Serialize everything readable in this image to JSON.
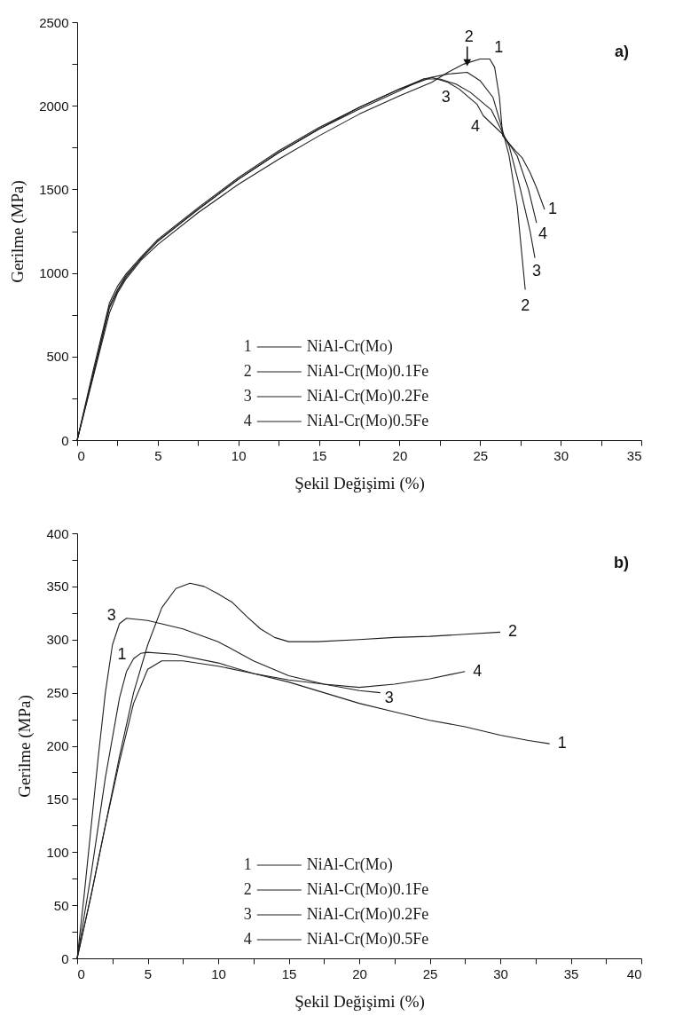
{
  "chart_data": [
    {
      "type": "line",
      "xlabel": "Şekil Değişimi (%)",
      "ylabel": "Gerilme (MPa)",
      "xlim": [
        0,
        35
      ],
      "ylim": [
        0,
        2500
      ],
      "xticks": [
        0,
        {
          "value": 2.5,
          "label": null
        },
        5,
        {
          "value": 7.5,
          "label": null
        },
        10,
        {
          "value": 12.5,
          "label": null
        },
        15,
        {
          "value": 17.5,
          "label": null
        },
        20,
        {
          "value": 22.5,
          "label": null
        },
        25,
        {
          "value": 27.5,
          "label": null
        },
        30,
        {
          "value": 32.5,
          "label": null
        },
        35
      ],
      "yticks": [
        0,
        {
          "value": 250,
          "label": null
        },
        500,
        {
          "value": 750,
          "label": null
        },
        1000,
        {
          "value": 1250,
          "label": null
        },
        1500,
        {
          "value": 1750,
          "label": null
        },
        2000,
        {
          "value": 2250,
          "label": null
        },
        2500
      ],
      "grid": false,
      "legend": "bottom",
      "marker": "none",
      "line_style": "solid",
      "series": [
        {
          "name": "NiAl-Cr(Mo)",
          "color": "#1e1e1e",
          "x": [
            0,
            1,
            2,
            2.5,
            3,
            4,
            5,
            7.5,
            10,
            12.5,
            15,
            17.5,
            20,
            22,
            23,
            24,
            25,
            25.6,
            25.9,
            26.2,
            26.4,
            27.2,
            27.6,
            28.1,
            28.5,
            29
          ],
          "values": [
            0,
            380,
            760,
            880,
            960,
            1080,
            1170,
            1360,
            1530,
            1680,
            1820,
            1950,
            2060,
            2140,
            2200,
            2250,
            2280,
            2280,
            2230,
            2050,
            1820,
            1730,
            1690,
            1600,
            1510,
            1380
          ]
        },
        {
          "name": "NiAl-Cr(Mo)0.1Fe",
          "color": "#1e1e1e",
          "x": [
            0,
            1,
            2,
            2.5,
            3,
            4,
            5,
            7.5,
            10,
            12.5,
            15,
            17.5,
            20,
            21.5,
            23,
            24.2,
            25,
            25.8,
            26.4,
            26.8,
            27.3,
            27.8
          ],
          "values": [
            0,
            420,
            820,
            920,
            990,
            1100,
            1200,
            1390,
            1570,
            1730,
            1870,
            1990,
            2100,
            2160,
            2190,
            2200,
            2150,
            2050,
            1850,
            1700,
            1400,
            900
          ]
        },
        {
          "name": "NiAl-Cr(Mo)0.2Fe",
          "color": "#1e1e1e",
          "x": [
            0,
            1,
            2,
            2.5,
            3,
            4,
            5,
            7.5,
            10,
            12.5,
            15,
            17.5,
            20,
            21.5,
            22.5,
            23.5,
            24.4,
            25.7,
            26.8,
            27.5,
            28.1,
            28.4
          ],
          "values": [
            0,
            400,
            800,
            900,
            980,
            1090,
            1190,
            1380,
            1560,
            1720,
            1860,
            1980,
            2090,
            2160,
            2160,
            2130,
            2080,
            1975,
            1760,
            1500,
            1250,
            1090
          ]
        },
        {
          "name": "NiAl-Cr(Mo)0.5Fe",
          "color": "#1e1e1e",
          "x": [
            0,
            1,
            2,
            2.5,
            3,
            4,
            5,
            7.5,
            10,
            12.5,
            15,
            17.5,
            20,
            22,
            23,
            23.7,
            24.8,
            25.2,
            26.4,
            27.3,
            28,
            28.5
          ],
          "values": [
            0,
            390,
            790,
            890,
            970,
            1090,
            1190,
            1380,
            1560,
            1720,
            1860,
            1990,
            2100,
            2170,
            2140,
            2100,
            2010,
            1940,
            1830,
            1700,
            1500,
            1300
          ]
        }
      ],
      "annotations": [
        {
          "text": "2",
          "x": 24.2,
          "y": 2200
        },
        {
          "text": "1",
          "x": 25.6,
          "y": 2280
        },
        {
          "text": "3",
          "x": 22.5,
          "y": 2160
        },
        {
          "text": "4",
          "x": 25.2,
          "y": 1940
        },
        {
          "text": "1",
          "x": 29,
          "y": 1380
        },
        {
          "text": "4",
          "x": 28.5,
          "y": 1300
        },
        {
          "text": "3",
          "x": 28.4,
          "y": 1090
        },
        {
          "text": "2",
          "x": 27.8,
          "y": 900
        },
        "a)"
      ]
    },
    {
      "type": "line",
      "xlabel": "Şekil Değişimi (%)",
      "ylabel": "Gerilme (MPa)",
      "xlim": [
        0,
        40
      ],
      "ylim": [
        0,
        400
      ],
      "xticks": [
        0,
        {
          "value": 2.5,
          "label": null
        },
        5,
        {
          "value": 7.5,
          "label": null
        },
        10,
        {
          "value": 12.5,
          "label": null
        },
        15,
        {
          "value": 17.5,
          "label": null
        },
        20,
        {
          "value": 22.5,
          "label": null
        },
        25,
        {
          "value": 27.5,
          "label": null
        },
        30,
        {
          "value": 32.5,
          "label": null
        },
        35,
        {
          "value": 37.5,
          "label": null
        },
        40
      ],
      "yticks": [
        0,
        {
          "value": 25,
          "label": null
        },
        50,
        {
          "value": 75,
          "label": null
        },
        100,
        {
          "value": 125,
          "label": null
        },
        150,
        {
          "value": 175,
          "label": null
        },
        200,
        {
          "value": 225,
          "label": null
        },
        250,
        {
          "value": 275,
          "label": null
        },
        300,
        {
          "value": 325,
          "label": null
        },
        350,
        {
          "value": 375,
          "label": null
        },
        400
      ],
      "grid": false,
      "legend": "bottom",
      "marker": "none",
      "line_style": "solid",
      "series": [
        {
          "name": "NiAl-Cr(Mo)",
          "color": "#1e1e1e",
          "x": [
            0,
            1,
            2,
            3,
            3.5,
            4,
            4.5,
            5,
            7,
            10,
            12.5,
            15,
            17.5,
            20,
            22.5,
            25,
            27.5,
            30,
            32,
            33.5
          ],
          "values": [
            0,
            80,
            170,
            245,
            270,
            282,
            287,
            288,
            286,
            278,
            268,
            260,
            250,
            240,
            232,
            224,
            218,
            210,
            205,
            202
          ]
        },
        {
          "name": "NiAl-Cr(Mo)0.1Fe",
          "color": "#1e1e1e",
          "x": [
            0,
            1,
            2,
            3,
            4,
            5,
            6,
            7,
            8,
            9,
            10,
            11,
            12,
            13,
            14,
            15,
            17,
            20,
            22.5,
            25,
            27.5,
            30
          ],
          "values": [
            0,
            60,
            125,
            190,
            250,
            295,
            330,
            348,
            353,
            350,
            343,
            335,
            322,
            310,
            302,
            298,
            298,
            300,
            302,
            303,
            305,
            307
          ]
        },
        {
          "name": "NiAl-Cr(Mo)0.2Fe",
          "color": "#1e1e1e",
          "x": [
            0,
            0.5,
            1,
            1.5,
            2,
            2.5,
            3,
            3.5,
            5,
            7.5,
            10,
            12.5,
            15,
            17.5,
            20,
            21.5
          ],
          "values": [
            0,
            60,
            125,
            190,
            250,
            295,
            315,
            320,
            318,
            310,
            298,
            280,
            266,
            258,
            252,
            250
          ]
        },
        {
          "name": "NiAl-Cr(Mo)0.5Fe",
          "color": "#1e1e1e",
          "x": [
            0,
            1,
            2,
            3,
            4,
            5,
            6,
            7.5,
            10,
            12.5,
            15,
            17.5,
            20,
            22.5,
            25,
            27.5
          ],
          "values": [
            0,
            60,
            125,
            185,
            240,
            272,
            280,
            280,
            275,
            268,
            262,
            258,
            255,
            258,
            263,
            270
          ]
        }
      ],
      "annotations": [
        {
          "text": "3",
          "x": 3,
          "y": 315
        },
        {
          "text": "1",
          "x": 4,
          "y": 282
        },
        {
          "text": "2",
          "x": 30,
          "y": 307
        },
        {
          "text": "4",
          "x": 27.5,
          "y": 270
        },
        {
          "text": "3",
          "x": 21.5,
          "y": 250
        },
        {
          "text": "1",
          "x": 33.5,
          "y": 202
        },
        "b)"
      ]
    }
  ]
}
